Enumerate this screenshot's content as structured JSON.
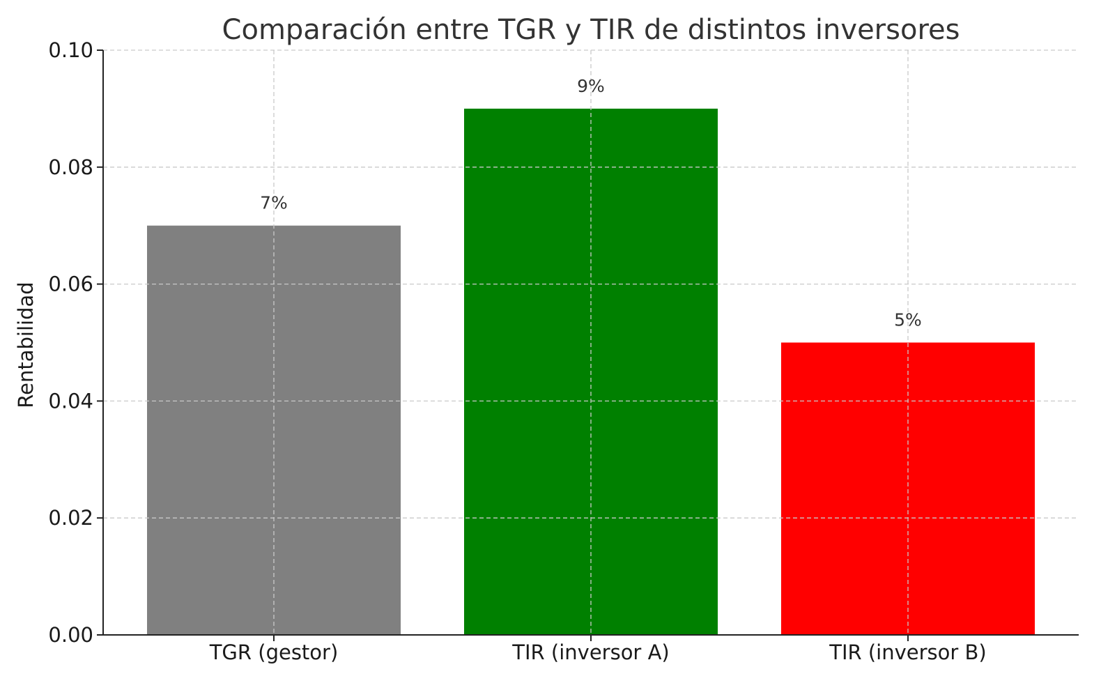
{
  "chart_data": {
    "type": "bar",
    "title": "Comparación entre TGR y TIR de distintos inversores",
    "xlabel": "",
    "ylabel": "Rentabilidad",
    "categories": [
      "TGR (gestor)",
      "TIR (inversor A)",
      "TIR (inversor B)"
    ],
    "values": [
      0.07,
      0.09,
      0.05
    ],
    "data_labels": [
      "7%",
      "9%",
      "5%"
    ],
    "colors": [
      "#808080",
      "#008000",
      "#ff0000"
    ],
    "ylim": [
      0,
      0.1
    ],
    "yticks": [
      "0.00",
      "0.02",
      "0.04",
      "0.06",
      "0.08",
      "0.10"
    ],
    "grid": true,
    "legend": "none"
  }
}
